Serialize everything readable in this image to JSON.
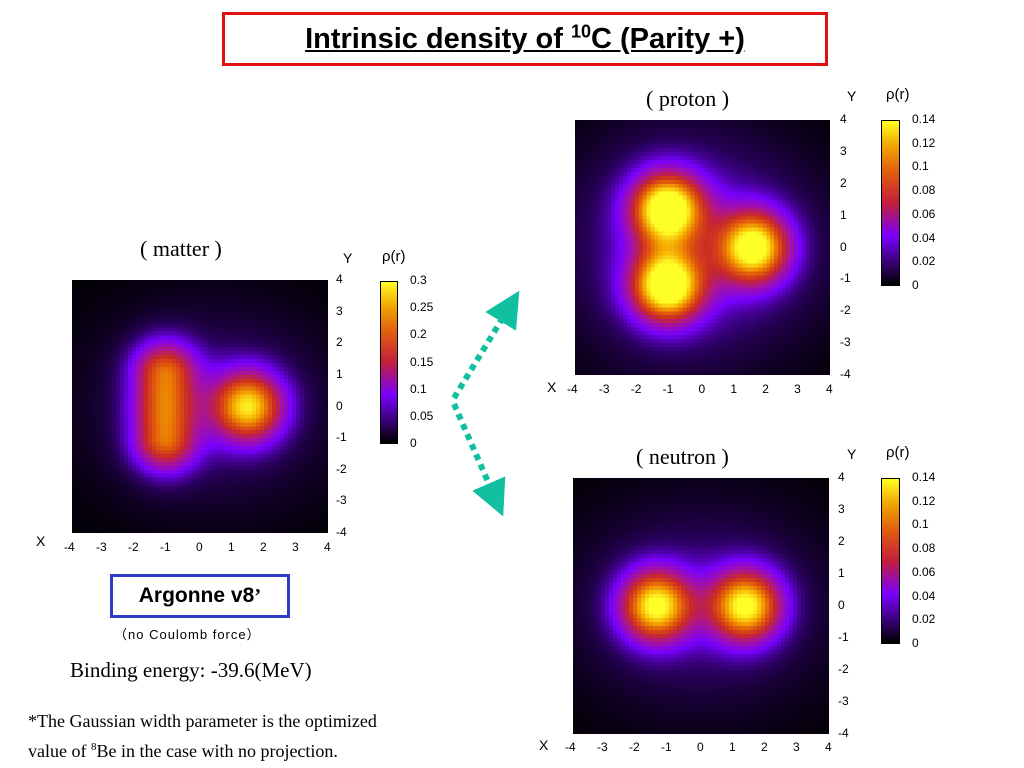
{
  "title": {
    "pre": "Intrinsic density of ",
    "sup": "10",
    "post": "C (Parity +)"
  },
  "panels": {
    "matter": {
      "title": "( matter )",
      "xlabel": "X",
      "ylabel": "Y",
      "cbar_label": "ρ(r)",
      "cbar_ticks": [
        "0.3",
        "0.25",
        "0.2",
        "0.15",
        "0.1",
        "0.05",
        "0"
      ]
    },
    "proton": {
      "title": "( proton )",
      "xlabel": "X",
      "ylabel": "Y",
      "cbar_label": "ρ(r)",
      "cbar_ticks": [
        "0.14",
        "0.12",
        "0.1",
        "0.08",
        "0.06",
        "0.04",
        "0.02",
        "0"
      ]
    },
    "neutron": {
      "title": "( neutron )",
      "xlabel": "X",
      "ylabel": "Y",
      "cbar_label": "ρ(r)",
      "cbar_ticks": [
        "0.14",
        "0.12",
        "0.1",
        "0.08",
        "0.06",
        "0.04",
        "0.02",
        "0"
      ]
    }
  },
  "axis_ticks": {
    "x": [
      "-4",
      "-3",
      "-2",
      "-1",
      "0",
      "1",
      "2",
      "3",
      "4"
    ],
    "y": [
      "4",
      "3",
      "2",
      "1",
      "0",
      "-1",
      "-2",
      "-3",
      "-4"
    ]
  },
  "argonne": {
    "label": "Argonne v8",
    "suffix": "’",
    "note": "（no  Coulomb  force）"
  },
  "binding": "Binding energy: -39.6(MeV)",
  "footnote": {
    "line1": "*The Gaussian width parameter is the optimized",
    "line2_pre": "value of ",
    "line2_sup": "8",
    "line2_post": "Be in the case with no projection."
  },
  "colors": {
    "title_border": "#e01010",
    "argonne_border": "#2a3ec8",
    "arrow": "#10c0a0"
  },
  "chart_data": [
    {
      "type": "heatmap",
      "name": "matter",
      "x_range": [
        -4,
        4
      ],
      "y_range": [
        -4,
        4
      ],
      "color_range": [
        0,
        0.3
      ],
      "clusters": [
        {
          "shape": "elongated",
          "x": -1.1,
          "y": 0,
          "peak": 0.2
        },
        {
          "shape": "round",
          "x": 1.5,
          "y": 0,
          "peak": 0.25
        }
      ]
    },
    {
      "type": "heatmap",
      "name": "proton",
      "x_range": [
        -4,
        4
      ],
      "y_range": [
        -4,
        4
      ],
      "color_range": [
        0,
        0.14
      ],
      "clusters": [
        {
          "x": -1.1,
          "y": 1.2,
          "peak": 0.14
        },
        {
          "x": -1.1,
          "y": -1.2,
          "peak": 0.14
        },
        {
          "x": 1.6,
          "y": 0,
          "peak": 0.13
        }
      ]
    },
    {
      "type": "heatmap",
      "name": "neutron",
      "x_range": [
        -4,
        4
      ],
      "y_range": [
        -4,
        4
      ],
      "color_range": [
        0,
        0.14
      ],
      "clusters": [
        {
          "x": -1.4,
          "y": 0,
          "peak": 0.125
        },
        {
          "x": 1.4,
          "y": 0,
          "peak": 0.125
        }
      ]
    }
  ]
}
